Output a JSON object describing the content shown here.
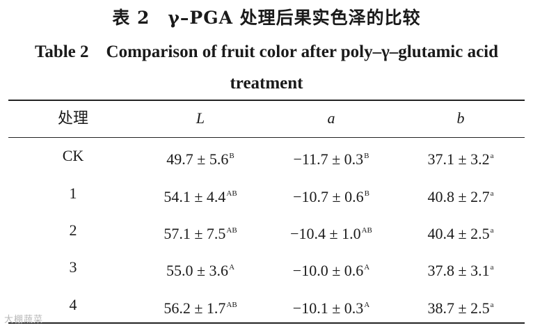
{
  "title_cn": "表 2　γ–PGA 处理后果实色泽的比较",
  "title_en": "Table 2　Comparison of fruit color after poly–γ–glutamic acid treatment",
  "headers": [
    "处理",
    "L",
    "a",
    "b"
  ],
  "rows": [
    {
      "treatment": "CK",
      "L": "49.7 ± 5.6",
      "L_sup": "B",
      "a": "−11.7 ± 0.3",
      "a_sup": "B",
      "b": "37.1 ± 3.2",
      "b_sup": "a"
    },
    {
      "treatment": "1",
      "L": "54.1 ± 4.4",
      "L_sup": "AB",
      "a": "−10.7 ± 0.6",
      "a_sup": "B",
      "b": "40.8 ± 2.7",
      "b_sup": "a"
    },
    {
      "treatment": "2",
      "L": "57.1 ± 7.5",
      "L_sup": "AB",
      "a": "−10.4 ± 1.0",
      "a_sup": "AB",
      "b": "40.4 ± 2.5",
      "b_sup": "a"
    },
    {
      "treatment": "3",
      "L": "55.0 ± 3.6",
      "L_sup": "A",
      "a": "−10.0 ± 0.6",
      "a_sup": "A",
      "b": "37.8 ± 3.1",
      "b_sup": "a"
    },
    {
      "treatment": "4",
      "L": "56.2 ± 1.7",
      "L_sup": "AB",
      "a": "−10.1 ± 0.3",
      "a_sup": "A",
      "b": "38.7 ± 2.5",
      "b_sup": "a"
    }
  ],
  "watermark": "大棚蔬菜"
}
